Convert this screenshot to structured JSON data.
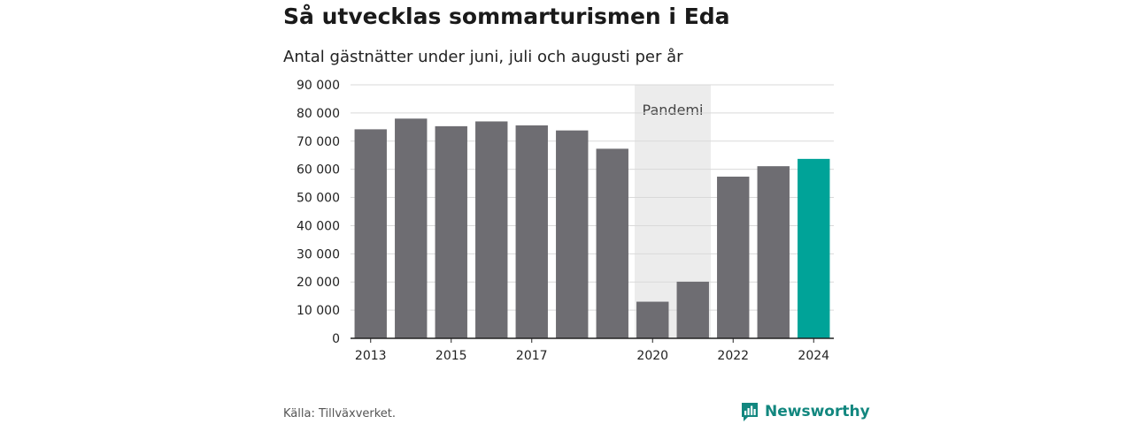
{
  "header": {
    "title": "Så utvecklas sommarturismen i Eda",
    "subtitle": "Antal gästnätter under juni, juli och augusti per år"
  },
  "footer": {
    "source": "Källa: Tillväxverket.",
    "brand": "Newsworthy"
  },
  "colors": {
    "bar": "#6e6d72",
    "highlight": "#00a398",
    "pandemic_band": "#ececec",
    "grid": "#d9d9d9",
    "brand": "#12877f"
  },
  "chart_data": {
    "type": "bar",
    "title": "Så utvecklas sommarturismen i Eda",
    "subtitle": "Antal gästnätter under juni, juli och augusti per år",
    "categories": [
      "2013",
      "2014",
      "2015",
      "2016",
      "2017",
      "2018",
      "2019",
      "2020",
      "2021",
      "2022",
      "2023",
      "2024"
    ],
    "values": [
      74200,
      78000,
      75300,
      77000,
      75600,
      73800,
      67300,
      13000,
      20100,
      57400,
      61100,
      63700
    ],
    "highlight_category": "2024",
    "x_tick_labels": [
      "2013",
      "2015",
      "2017",
      "2020",
      "2022",
      "2024"
    ],
    "y_ticks": [
      0,
      10000,
      20000,
      30000,
      40000,
      50000,
      60000,
      70000,
      80000,
      90000
    ],
    "y_tick_labels": [
      "0",
      "10 000",
      "20 000",
      "30 000",
      "40 000",
      "50 000",
      "60 000",
      "70 000",
      "80 000",
      "90 000"
    ],
    "ylim": [
      0,
      90000
    ],
    "grid": true,
    "annotation": {
      "label": "Pandemi",
      "from_category": "2020",
      "to_category": "2021"
    }
  }
}
